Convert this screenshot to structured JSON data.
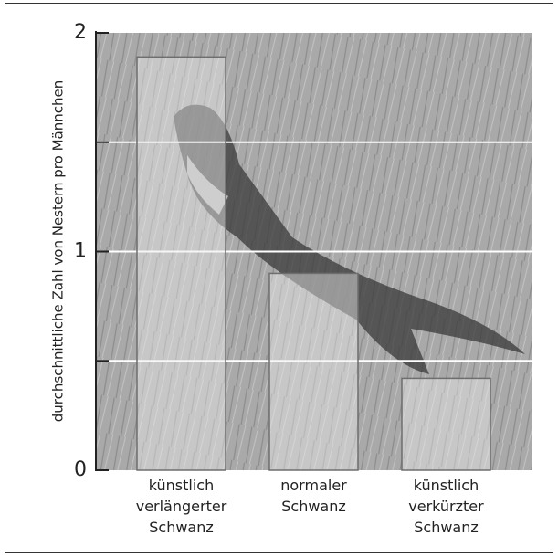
{
  "chart_data": {
    "type": "bar",
    "y_label": "durchschnittliche Zahl von Nestern pro Männchen",
    "categories": [
      "künstlich verlängerter Schwanz",
      "normaler Schwanz",
      "künstlich verkürzter Schwanz"
    ],
    "values": [
      1.89,
      0.9,
      0.42
    ],
    "ylim": [
      0,
      2
    ],
    "yticks": [
      0,
      1,
      2
    ],
    "minor_yticks": [
      0.5,
      1.5
    ],
    "grid": true,
    "color": "rgba(235,235,235,0.45)",
    "edge_color": "#6e6e6e"
  }
}
